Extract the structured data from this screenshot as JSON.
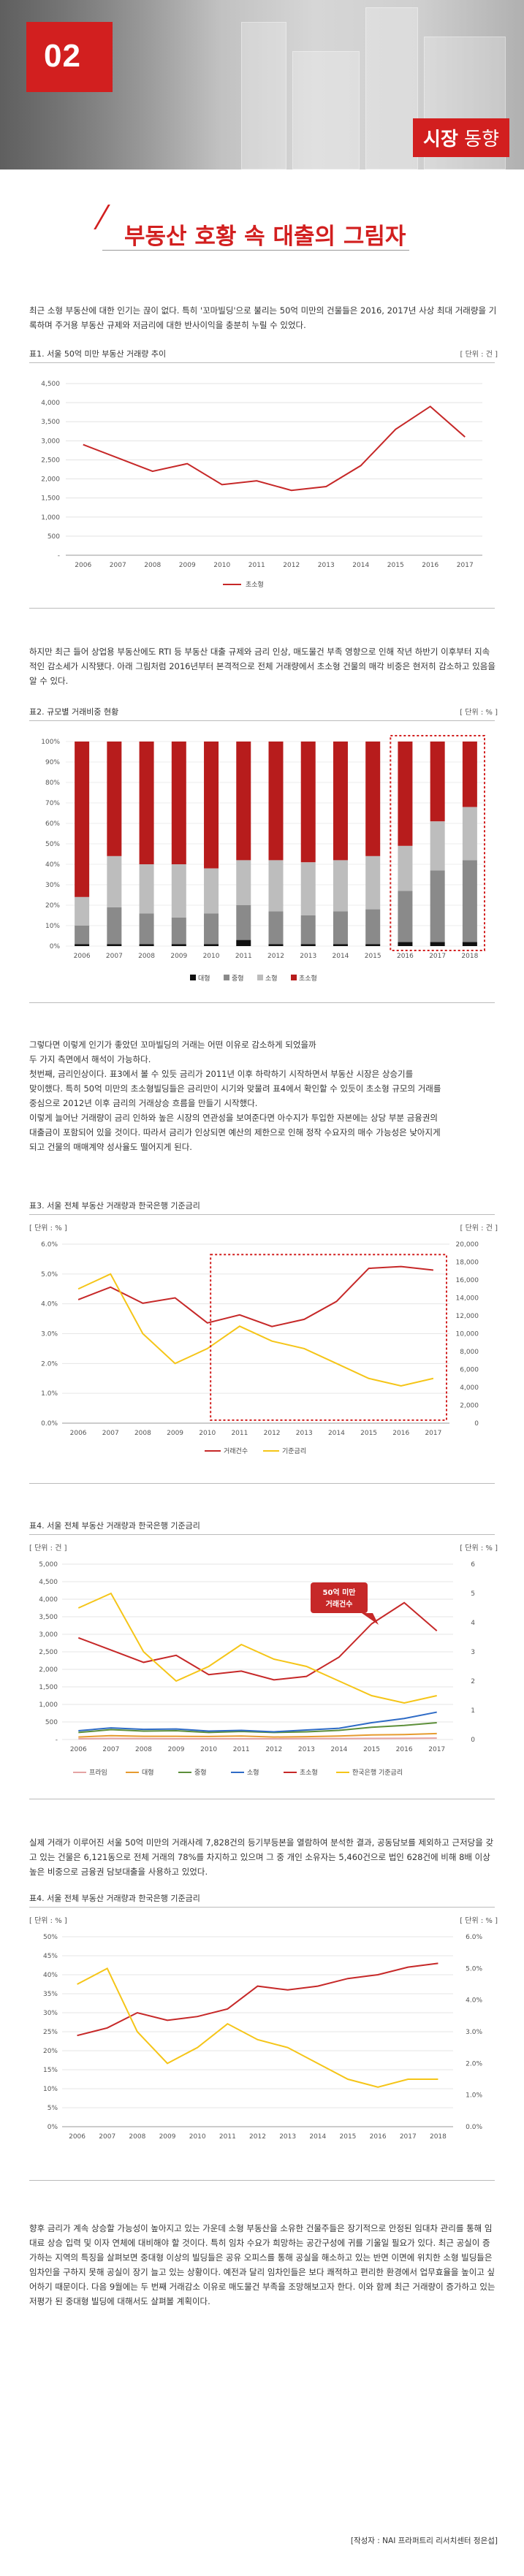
{
  "banner": {
    "number": "02",
    "title_bold": "시장",
    "title_light": "동향"
  },
  "heading": "부동산 호황 속 대출의 그림자",
  "intro": "최근 소형 부동산에 대한 인기는 끊이 없다. 특히 '꼬마빌딩'으로 불리는 50억 미만의 건물들은 2016, 2017년 사상 최대 거래량을 기록하며 주거용 부동산 규제와 저금리에 대한 반사이익을 충분히 누릴 수 있었다.",
  "para2": "하지만 최근 들어 상업용 부동산에도 RTI 등 부동산 대출 규제와 금리 인상, 매도물건 부족 영향으로 인해 작년 하반기 이후부터 지속적인 감소세가 시작됐다. 아래 그림처럼 2016년부터 본격적으로 전체 거래량에서 초소형 건물의 매각 비중은 현저히 감소하고 있음을 알 수 있다.",
  "para3": [
    "그렇다면 이렇게 인기가 좋았던 꼬마빌딩의 거래는 어떤 이유로 감소하게 되었을까",
    "두 가지 측면에서 해석이 가능하다.",
    "첫번째, 금리인상이다. 표3에서 볼 수 있듯 금리가 2011년 이후 하락하기 시작하면서 부동산 시장은 상승기를",
    "맞이했다. 특히 50억 미만의 초소형빌딩들은 금리만이 시기와 맞물려 표4에서 확인할 수 있듯이 초소형 규모의 거래를",
    "중심으로 2012년 이후 금리의 거래상승 흐름을 만들기 시작했다.",
    "이렇게 늘어난 거래량이 금리 인하와 높은 시장의 연관성을 보여준다면 아수지가 투입한 자본에는 상당 부분 금융권의",
    "대출금이 포함되어 있을 것이다. 따라서 금리가 인상되면 예산의 제한으로 인해 정작 수요자의 매수 가능성은 낮아지게",
    "되고 건물의 매매계약 성사율도 떨어지게 된다."
  ],
  "para4": "실제 거래가 이루어진 서울 50억 미만의 거래사례 7,828건의 등기부등본을 열람하여 분석한 결과, 공동담보를 제외하고 근저당을 갖고 있는 건물은 6,121동으로 전체 거래의 78%를 차지하고 있으며 그 중 개인 소유자는 5,460건으로 법인 628건에 비해 8배 이상 높은 비중으로 금융권 담보대출을 사용하고 있었다.",
  "para5": "향후 금리가 계속 상승할 가능성이 높아지고 있는 가운데 소형 부동산을 소유한 건물주들은 장기적으로 안정된 임대차 관리를 통해 임대료 상승 입력 및 이자 연체에 대비해야 할 것이다. 특히 임차 수요가 희망하는 공간구성에 귀를 기울일 필요가 있다. 최근 공실이 증가하는 지역의 특징을 살펴보면 중대형 이상의 빌딩들은 공유 오피스를 통해 공실을 해소하고 있는 반면 이면에 위치한 소형 빌딩들은 임차인을 구하지 못해 공실이 장기 늘고 있는 상황이다. 예전과 달리 임차인들은 보다 쾌적하고 편리한 환경에서 업무효율을 높이고 싶어하기 때문이다. 다음 9월에는 두 번째 거래감소 이유로 매도물건 부족을 조망해보고자 한다. 이와 함께 최근 거래량이 증가하고 있는 저평가 된 중대형 빌딩에 대해서도 살펴볼 계획이다.",
  "credit": "[작성자 : NAI 프라퍼트리 리서치센터 정은섭]",
  "fig1": {
    "caption": "표1. 서울 50억 미만 부동산 거래량 추이",
    "unit": "[ 단위 : 건 ]"
  },
  "fig2": {
    "caption": "표2. 규모별 거래비중 현황",
    "unit": "[ 단위 : % ]"
  },
  "fig3": {
    "caption": "표3. 서울 전체 부동산 거래량과 한국은행 기준금리",
    "unit_left": "[ 단위 : % ]",
    "unit_right": "[ 단위 : 건 ]"
  },
  "fig4": {
    "caption": "표4. 서울 전체 부동산 거래량과 한국은행 기준금리",
    "unit_left": "[ 단위 : 건 ]",
    "unit_right": "[ 단위 : % ]",
    "callout_line1": "50억 미만",
    "callout_line2": "거래건수"
  },
  "fig5": {
    "caption": "표4. 서울 전체 부동산 거래량과 한국은행 기준금리",
    "unit_left": "[ 단위 : % ]",
    "unit_right": "[ 단위 : % ]"
  },
  "colors": {
    "red": "#c62828",
    "yellow": "#f5c518",
    "accent": "#d21f1f"
  },
  "chart_data": [
    {
      "type": "line",
      "x": [
        "2006",
        "2007",
        "2008",
        "2009",
        "2010",
        "2011",
        "2012",
        "2013",
        "2014",
        "2015",
        "2016",
        "2017"
      ],
      "series": [
        {
          "name": "초소형",
          "values": [
            2900,
            2550,
            2200,
            2400,
            1850,
            1950,
            1700,
            1800,
            2350,
            3300,
            3900,
            3100
          ]
        }
      ],
      "yticks": [
        "-",
        "500",
        "1,000",
        "1,500",
        "2,000",
        "2,500",
        "3,000",
        "3,500",
        "4,000",
        "4,500"
      ],
      "ylim": [
        0,
        4500
      ]
    },
    {
      "type": "bar",
      "stacked": true,
      "categories": [
        "2006",
        "2007",
        "2008",
        "2009",
        "2010",
        "2011",
        "2012",
        "2013",
        "2014",
        "2015",
        "2016",
        "2017",
        "2018"
      ],
      "series": [
        {
          "name": "대형",
          "values": [
            1,
            1,
            1,
            1,
            1,
            3,
            1,
            1,
            1,
            1,
            2,
            2,
            2
          ]
        },
        {
          "name": "중형",
          "values": [
            9,
            18,
            15,
            13,
            15,
            17,
            16,
            14,
            16,
            17,
            25,
            35,
            40
          ]
        },
        {
          "name": "소형",
          "values": [
            14,
            25,
            24,
            26,
            22,
            22,
            25,
            26,
            25,
            26,
            22,
            24,
            26
          ]
        },
        {
          "name": "초소형",
          "values": [
            76,
            56,
            60,
            60,
            62,
            58,
            58,
            59,
            58,
            56,
            51,
            39,
            32
          ]
        }
      ],
      "yticks": [
        "0%",
        "10%",
        "20%",
        "30%",
        "40%",
        "50%",
        "60%",
        "70%",
        "80%",
        "90%",
        "100%"
      ],
      "ylim": [
        0,
        100
      ]
    },
    {
      "type": "line",
      "x": [
        "2006",
        "2007",
        "2008",
        "2009",
        "2010",
        "2011",
        "2012",
        "2013",
        "2014",
        "2015",
        "2016",
        "2017"
      ],
      "series": [
        {
          "name": "거래건수",
          "axis": "right",
          "values": [
            13800,
            15200,
            13400,
            14000,
            11200,
            12100,
            10800,
            11600,
            13600,
            17300,
            17500,
            17100
          ]
        },
        {
          "name": "기준금리",
          "axis": "left",
          "values": [
            4.5,
            5.0,
            3.0,
            2.0,
            2.5,
            3.25,
            2.75,
            2.5,
            2.0,
            1.5,
            1.25,
            1.5
          ]
        }
      ],
      "yticks_left": [
        "0.0%",
        "1.0%",
        "2.0%",
        "3.0%",
        "4.0%",
        "5.0%",
        "6.0%"
      ],
      "yticks_right": [
        "0",
        "2,000",
        "4,000",
        "6,000",
        "8,000",
        "10,000",
        "12,000",
        "14,000",
        "16,000",
        "18,000",
        "20,000"
      ],
      "ylim_left": [
        0,
        6
      ],
      "ylim_right": [
        0,
        20000
      ]
    },
    {
      "type": "line",
      "x": [
        "2006",
        "2007",
        "2008",
        "2009",
        "2010",
        "2011",
        "2012",
        "2013",
        "2014",
        "2015",
        "2016",
        "2017"
      ],
      "series": [
        {
          "name": "프라임",
          "axis": "left",
          "values": [
            20,
            30,
            25,
            20,
            20,
            20,
            20,
            25,
            25,
            30,
            35,
            40
          ]
        },
        {
          "name": "대형",
          "axis": "left",
          "values": [
            70,
            110,
            90,
            90,
            85,
            100,
            70,
            80,
            100,
            130,
            140,
            170
          ]
        },
        {
          "name": "중형",
          "axis": "left",
          "values": [
            200,
            280,
            240,
            250,
            200,
            230,
            200,
            220,
            260,
            350,
            400,
            480
          ]
        },
        {
          "name": "소형",
          "axis": "left",
          "values": [
            250,
            330,
            290,
            300,
            240,
            260,
            220,
            270,
            320,
            480,
            600,
            780
          ]
        },
        {
          "name": "초소형",
          "axis": "left",
          "values": [
            2900,
            2550,
            2200,
            2400,
            1850,
            1950,
            1700,
            1800,
            2350,
            3300,
            3900,
            3100
          ]
        },
        {
          "name": "한국은행 기준금리",
          "axis": "right",
          "values": [
            4.5,
            5.0,
            3.0,
            2.0,
            2.5,
            3.25,
            2.75,
            2.5,
            2.0,
            1.5,
            1.25,
            1.5
          ]
        }
      ],
      "yticks_left": [
        "-",
        "500",
        "1,000",
        "1,500",
        "2,000",
        "2,500",
        "3,000",
        "3,500",
        "4,000",
        "4,500",
        "5,000"
      ],
      "yticks_right": [
        "0",
        "1",
        "2",
        "3",
        "4",
        "5",
        "6"
      ],
      "ylim_left": [
        0,
        5000
      ],
      "ylim_right": [
        0,
        6
      ]
    },
    {
      "type": "line",
      "x": [
        "2006",
        "2007",
        "2008",
        "2009",
        "2010",
        "2011",
        "2012",
        "2013",
        "2014",
        "2015",
        "2016",
        "2017",
        "2018"
      ],
      "series": [
        {
          "name": "초소형 비중",
          "axis": "left",
          "values": [
            24,
            26,
            30,
            28,
            29,
            31,
            37,
            36,
            37,
            39,
            40,
            42,
            43
          ]
        },
        {
          "name": "기준금리",
          "axis": "right",
          "values": [
            4.5,
            5.0,
            3.0,
            2.0,
            2.5,
            3.25,
            2.75,
            2.5,
            2.0,
            1.5,
            1.25,
            1.5,
            1.5
          ]
        }
      ],
      "yticks_left": [
        "0%",
        "5%",
        "10%",
        "15%",
        "20%",
        "25%",
        "30%",
        "35%",
        "40%",
        "45%",
        "50%"
      ],
      "yticks_right": [
        "0.0%",
        "1.0%",
        "2.0%",
        "3.0%",
        "4.0%",
        "5.0%",
        "6.0%"
      ],
      "ylim_left": [
        0,
        50
      ],
      "ylim_right": [
        0,
        6
      ]
    }
  ]
}
